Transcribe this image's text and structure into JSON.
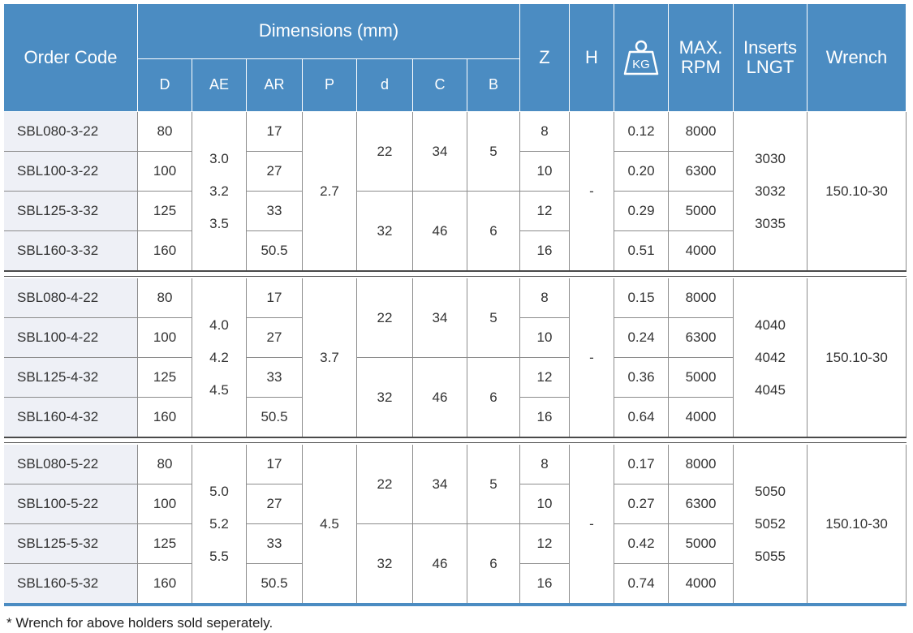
{
  "header": {
    "order_code": "Order Code",
    "dimensions": "Dimensions (mm)",
    "columns": [
      "D",
      "AE",
      "AR",
      "P",
      "d",
      "C",
      "B"
    ],
    "z": "Z",
    "h": "H",
    "weight_icon": "KG",
    "max_rpm": [
      "MAX.",
      "RPM"
    ],
    "inserts": [
      "Inserts",
      "LNGT"
    ],
    "wrench": "Wrench"
  },
  "groups": [
    {
      "rows": [
        {
          "code": "SBL080-3-22",
          "D": "80",
          "AR": "17",
          "Z": "8",
          "weight": "0.12",
          "rpm": "8000"
        },
        {
          "code": "SBL100-3-22",
          "D": "100",
          "AR": "27",
          "Z": "10",
          "weight": "0.20",
          "rpm": "6300"
        },
        {
          "code": "SBL125-3-32",
          "D": "125",
          "AR": "33",
          "Z": "12",
          "weight": "0.29",
          "rpm": "5000"
        },
        {
          "code": "SBL160-3-32",
          "D": "160",
          "AR": "50.5",
          "Z": "16",
          "weight": "0.51",
          "rpm": "4000"
        }
      ],
      "AE": [
        "3.0",
        "3.2",
        "3.5"
      ],
      "P": "2.7",
      "dCB": [
        [
          "22",
          "34",
          "5"
        ],
        [
          "32",
          "46",
          "6"
        ]
      ],
      "H": "-",
      "inserts": [
        "3030",
        "3032",
        "3035"
      ],
      "wrench": "150.10-30"
    },
    {
      "rows": [
        {
          "code": "SBL080-4-22",
          "D": "80",
          "AR": "17",
          "Z": "8",
          "weight": "0.15",
          "rpm": "8000"
        },
        {
          "code": "SBL100-4-22",
          "D": "100",
          "AR": "27",
          "Z": "10",
          "weight": "0.24",
          "rpm": "6300"
        },
        {
          "code": "SBL125-4-32",
          "D": "125",
          "AR": "33",
          "Z": "12",
          "weight": "0.36",
          "rpm": "5000"
        },
        {
          "code": "SBL160-4-32",
          "D": "160",
          "AR": "50.5",
          "Z": "16",
          "weight": "0.64",
          "rpm": "4000"
        }
      ],
      "AE": [
        "4.0",
        "4.2",
        "4.5"
      ],
      "P": "3.7",
      "dCB": [
        [
          "22",
          "34",
          "5"
        ],
        [
          "32",
          "46",
          "6"
        ]
      ],
      "H": "-",
      "inserts": [
        "4040",
        "4042",
        "4045"
      ],
      "wrench": "150.10-30"
    },
    {
      "rows": [
        {
          "code": "SBL080-5-22",
          "D": "80",
          "AR": "17",
          "Z": "8",
          "weight": "0.17",
          "rpm": "8000"
        },
        {
          "code": "SBL100-5-22",
          "D": "100",
          "AR": "27",
          "Z": "10",
          "weight": "0.27",
          "rpm": "6300"
        },
        {
          "code": "SBL125-5-32",
          "D": "125",
          "AR": "33",
          "Z": "12",
          "weight": "0.42",
          "rpm": "5000"
        },
        {
          "code": "SBL160-5-32",
          "D": "160",
          "AR": "50.5",
          "Z": "16",
          "weight": "0.74",
          "rpm": "4000"
        }
      ],
      "AE": [
        "5.0",
        "5.2",
        "5.5"
      ],
      "P": "4.5",
      "dCB": [
        [
          "22",
          "34",
          "5"
        ],
        [
          "32",
          "46",
          "6"
        ]
      ],
      "H": "-",
      "inserts": [
        "5050",
        "5052",
        "5055"
      ],
      "wrench": "150.10-30"
    }
  ],
  "footnote": "* Wrench for above holders sold seperately."
}
